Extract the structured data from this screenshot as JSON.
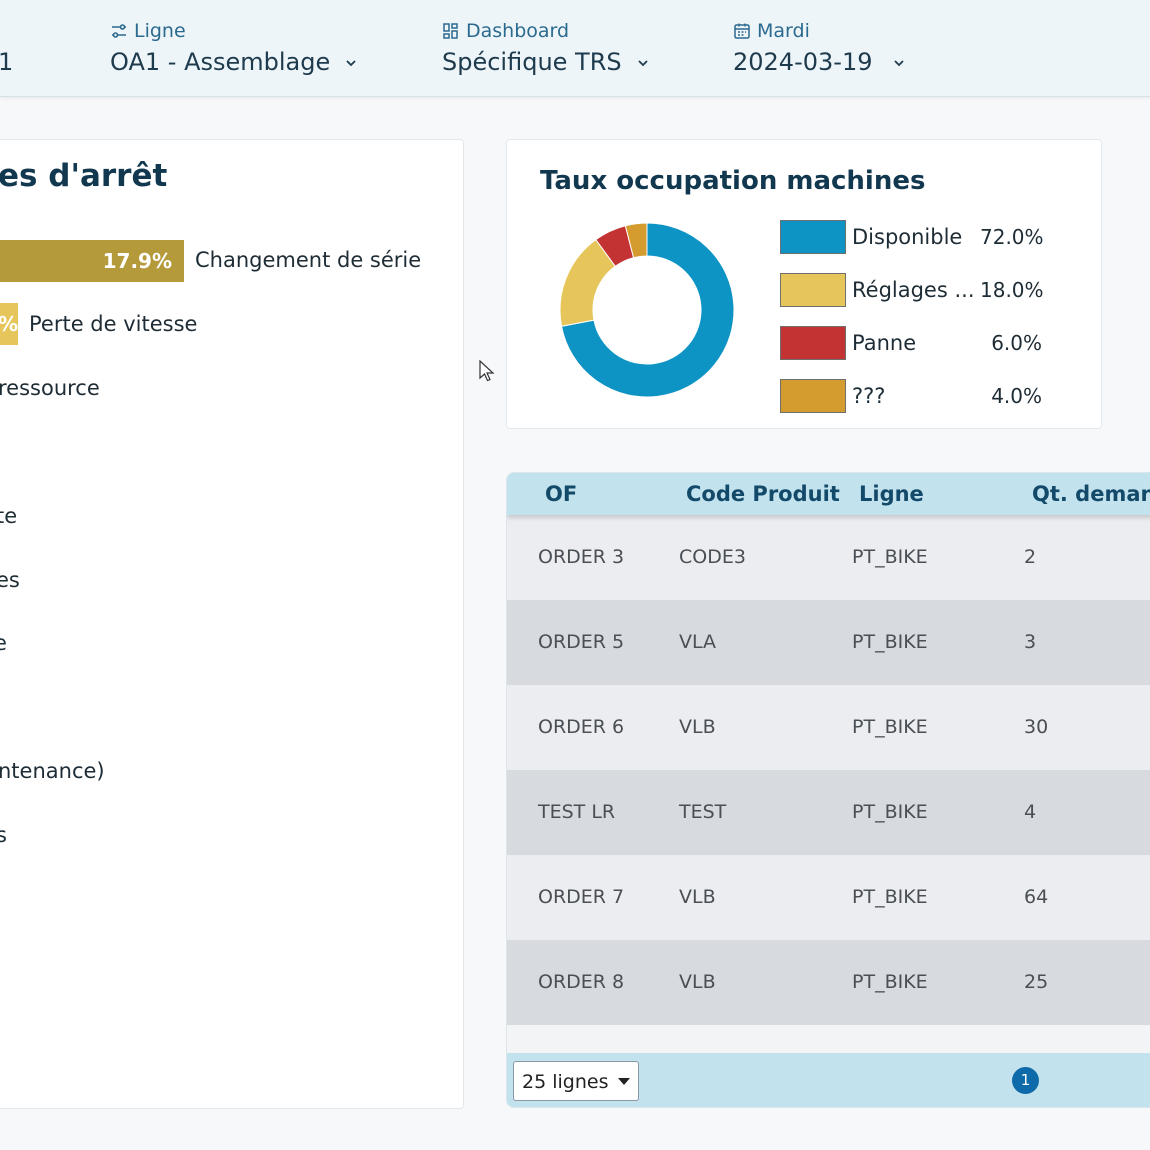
{
  "header": {
    "cut_text": "1",
    "ligne": {
      "label": "Ligne",
      "value": "OA1 - Assemblage"
    },
    "dashboard": {
      "label": "Dashboard",
      "value": "Spécifique TRS"
    },
    "date": {
      "label": "Mardi",
      "value": "2024-03-19"
    }
  },
  "stops": {
    "title": "es d'arrêt",
    "top_bar_pct": "17.9%",
    "second_bar_pct": "%",
    "items": [
      "Changement de série",
      "Perte de vitesse",
      "ressource",
      "te",
      "es",
      "e",
      "ntenance)",
      "s"
    ]
  },
  "occupation": {
    "title": "Taux occupation machines",
    "legend": [
      {
        "name": "Disponible",
        "pct": "72.0%",
        "value": 72.0,
        "color": "#0d94c4"
      },
      {
        "name": "Réglages ...",
        "pct": "18.0%",
        "value": 18.0,
        "color": "#e6c65a"
      },
      {
        "name": "Panne",
        "pct": "6.0%",
        "value": 6.0,
        "color": "#c43333"
      },
      {
        "name": "???",
        "pct": "4.0%",
        "value": 4.0,
        "color": "#d49b2f"
      }
    ]
  },
  "table": {
    "headers": [
      "OF",
      "Code Produit",
      "Ligne",
      "Qt. demand"
    ],
    "rows": [
      [
        "ORDER 3",
        "CODE3",
        "PT_BIKE",
        "2"
      ],
      [
        "ORDER 5",
        "VLA",
        "PT_BIKE",
        "3"
      ],
      [
        "ORDER 6",
        "VLB",
        "PT_BIKE",
        "30"
      ],
      [
        "TEST LR",
        "TEST",
        "PT_BIKE",
        "4"
      ],
      [
        "ORDER 7",
        "VLB",
        "PT_BIKE",
        "64"
      ],
      [
        "ORDER 8",
        "VLB",
        "PT_BIKE",
        "25"
      ]
    ],
    "page_size": "25 lignes",
    "current_page": "1"
  },
  "colors": {
    "bar_top": "#b59a3c",
    "bar_second": "#e6c65a",
    "accent": "#0e6aa8"
  }
}
